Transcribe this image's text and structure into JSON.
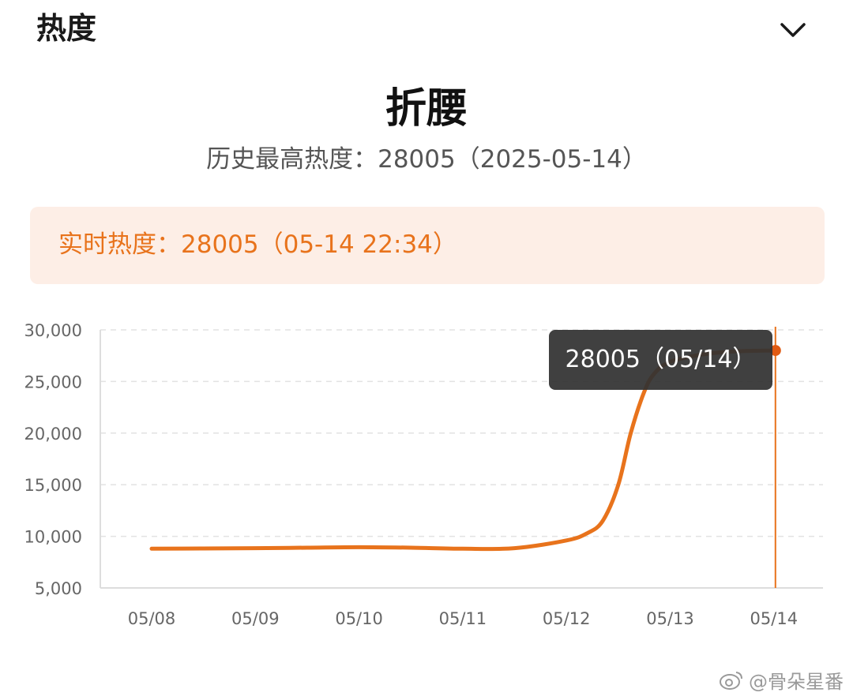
{
  "header": {
    "title": "热度",
    "collapse_icon": "chevron-down-icon"
  },
  "topic": {
    "title": "折腰",
    "history_label": "历史最高热度：28005（2025-05-14）"
  },
  "realtime": {
    "label": "实时热度：28005（05-14 22:34）"
  },
  "colors": {
    "accent": "#e8731c",
    "realtime_bg": "#fdeee6"
  },
  "tooltip": {
    "text": "28005（05/14）"
  },
  "watermark": {
    "text": "@骨朵星番",
    "icon": "weibo-eye-icon"
  },
  "chart_data": {
    "type": "line",
    "x": [
      "05/08",
      "05/09",
      "05/10",
      "05/11",
      "05/12",
      "05/13",
      "05/14"
    ],
    "ylim": [
      5000,
      30000
    ],
    "yticks": [
      {
        "value": 30000,
        "label": "30,000"
      },
      {
        "value": 25000,
        "label": "25,000"
      },
      {
        "value": 20000,
        "label": "20,000"
      },
      {
        "value": 15000,
        "label": "15,000"
      },
      {
        "value": 10000,
        "label": "10,000"
      },
      {
        "value": 5000,
        "label": "5,000"
      }
    ],
    "grid": true,
    "series": [
      {
        "color": "#e8731c",
        "points": [
          {
            "x": 0,
            "y": 8800
          },
          {
            "x": 0.5,
            "y": 8820
          },
          {
            "x": 1,
            "y": 8850
          },
          {
            "x": 1.5,
            "y": 8900
          },
          {
            "x": 2,
            "y": 8950
          },
          {
            "x": 2.5,
            "y": 8900
          },
          {
            "x": 3,
            "y": 8800
          },
          {
            "x": 3.5,
            "y": 8850
          },
          {
            "x": 4,
            "y": 9600
          },
          {
            "x": 4.2,
            "y": 10300
          },
          {
            "x": 4.35,
            "y": 11500
          },
          {
            "x": 4.5,
            "y": 15000
          },
          {
            "x": 4.62,
            "y": 20000
          },
          {
            "x": 4.75,
            "y": 24000
          },
          {
            "x": 4.85,
            "y": 25800
          },
          {
            "x": 5,
            "y": 26900
          },
          {
            "x": 5.3,
            "y": 27600
          },
          {
            "x": 5.6,
            "y": 27900
          },
          {
            "x": 6,
            "y": 28005
          }
        ]
      }
    ],
    "highlight": {
      "x": 6,
      "y": 28005
    }
  }
}
